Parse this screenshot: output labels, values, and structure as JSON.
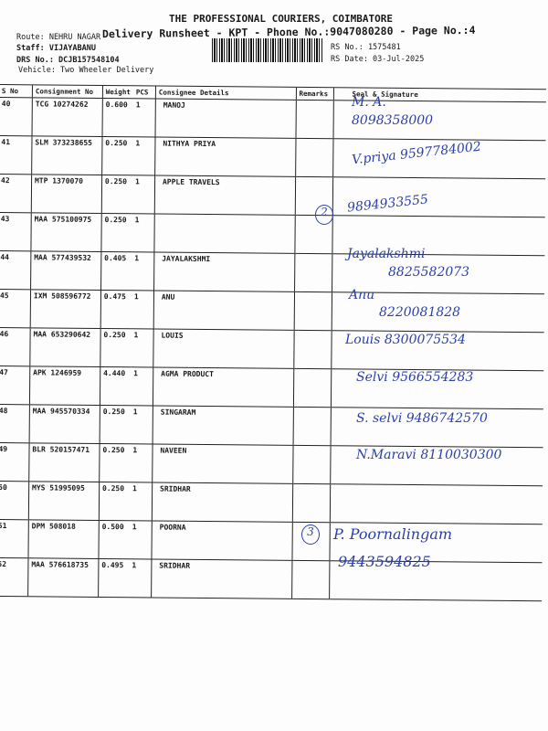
{
  "header": {
    "company": "THE PROFESSIONAL COURIERS, COIMBATORE",
    "subtitle": "Delivery Runsheet - KPT - Phone No.:9047080280 - Page No.:4",
    "route": "Route: NEHRU NAGAR",
    "staff": "Staff: VIJAYABANU",
    "drs": "DRS No.: DCJB157548104",
    "vehicle": "Vehicle: Two Wheeler Delivery",
    "rs_no": "RS No.: 1575481",
    "rs_date": "RS Date: 03-Jul-2025"
  },
  "columns": [
    "S No",
    "Consignment No",
    "Weight",
    "PCS",
    "Consignee Details",
    "Remarks",
    "Seal & Signature"
  ],
  "rows": [
    {
      "sno": "40",
      "cn": "TCG 10274262",
      "wt": "0.600",
      "pcs": "1",
      "name": "MANOJ"
    },
    {
      "sno": "41",
      "cn": "SLM 373238655",
      "wt": "0.250",
      "pcs": "1",
      "name": "NITHYA PRIYA"
    },
    {
      "sno": "42",
      "cn": "MTP 1370070",
      "wt": "0.250",
      "pcs": "1",
      "name": "APPLE TRAVELS"
    },
    {
      "sno": "43",
      "cn": "MAA 575100975",
      "wt": "0.250",
      "pcs": "1",
      "name": ""
    },
    {
      "sno": "44",
      "cn": "MAA 577439532",
      "wt": "0.405",
      "pcs": "1",
      "name": "JAYALAKSHMI"
    },
    {
      "sno": "45",
      "cn": "IXM 508596772",
      "wt": "0.475",
      "pcs": "1",
      "name": "ANU"
    },
    {
      "sno": "46",
      "cn": "MAA 653290642",
      "wt": "0.250",
      "pcs": "1",
      "name": "LOUIS"
    },
    {
      "sno": "47",
      "cn": "APK 1246959",
      "wt": "4.440",
      "pcs": "1",
      "name": "AGMA PRODUCT"
    },
    {
      "sno": "48",
      "cn": "MAA 945570334",
      "wt": "0.250",
      "pcs": "1",
      "name": "SINGARAM"
    },
    {
      "sno": "49",
      "cn": "BLR 520157471",
      "wt": "0.250",
      "pcs": "1",
      "name": "NAVEEN"
    },
    {
      "sno": "50",
      "cn": "MYS 51995095",
      "wt": "0.250",
      "pcs": "1",
      "name": "SRIDHAR"
    },
    {
      "sno": "51",
      "cn": "DPM 508018",
      "wt": "0.500",
      "pcs": "1",
      "name": "POORNA"
    },
    {
      "sno": "52",
      "cn": "MAA 576618735",
      "wt": "0.495",
      "pcs": "1",
      "name": "SRIDHAR"
    }
  ],
  "handwriting": [
    "M. A.",
    "8098358000",
    "V.priya 9597784002",
    "9894933555",
    "Jayalakshmi",
    "8825582073",
    "Anu",
    "8220081828",
    "Louis 8300075534",
    "Selvi 9566554283",
    "S. selvi 9486742570",
    "N.Maravi 8110030300",
    "P. Poornalingam",
    "9443594825",
    "2",
    "3"
  ]
}
